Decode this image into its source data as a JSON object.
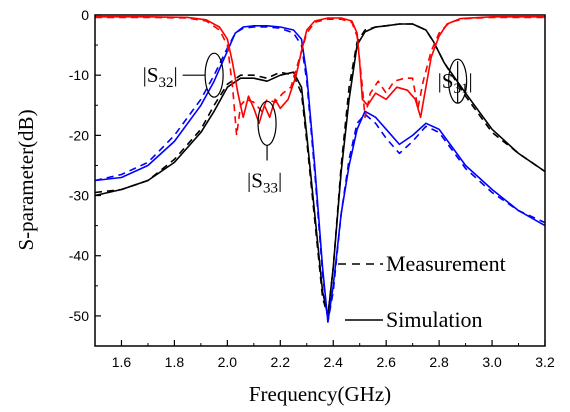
{
  "chart_data": {
    "type": "line",
    "title": "",
    "xlabel": "Frequency(GHz)",
    "ylabel": "S-parameter(dB)",
    "xlim": [
      1.5,
      3.2
    ],
    "ylim": [
      -55,
      0
    ],
    "xticks": [
      "1.6",
      "1.8",
      "2.0",
      "2.2",
      "2.4",
      "2.6",
      "2.8",
      "3.0",
      "3.2"
    ],
    "yticks": [
      "0",
      "-10",
      "-20",
      "-30",
      "-40",
      "-50"
    ],
    "grid": false,
    "legend": {
      "position": "bottom-right",
      "entries": [
        {
          "label": "Measurement",
          "style": "dashed"
        },
        {
          "label": "Simulation",
          "style": "solid"
        }
      ]
    },
    "annotations": [
      {
        "label": "|S32|",
        "text_main": "S",
        "text_sub": "32",
        "at": [
          1.95,
          -10
        ],
        "text_at": [
          1.68,
          -11.5
        ]
      },
      {
        "label": "|S33|",
        "text_main": "S",
        "text_sub": "33",
        "at": [
          2.15,
          -18
        ],
        "text_at": [
          2.15,
          -27.5
        ]
      },
      {
        "label": "|S31|",
        "text_main": "S",
        "text_sub": "31",
        "at": [
          2.87,
          -11
        ],
        "text_at": [
          2.99,
          -11
        ]
      }
    ],
    "series": [
      {
        "color": "#000000",
        "style": "solid",
        "points": [
          [
            1.5,
            -30
          ],
          [
            1.6,
            -29
          ],
          [
            1.7,
            -27.5
          ],
          [
            1.8,
            -24.5
          ],
          [
            1.9,
            -19.5
          ],
          [
            1.95,
            -16
          ],
          [
            2.0,
            -12
          ],
          [
            2.05,
            -10.5
          ],
          [
            2.1,
            -10.5
          ],
          [
            2.15,
            -11
          ],
          [
            2.2,
            -10
          ],
          [
            2.25,
            -9.5
          ],
          [
            2.28,
            -12
          ],
          [
            2.3,
            -20
          ],
          [
            2.33,
            -33
          ],
          [
            2.36,
            -46
          ],
          [
            2.38,
            -50
          ],
          [
            2.4,
            -42
          ],
          [
            2.43,
            -26
          ],
          [
            2.46,
            -14
          ],
          [
            2.49,
            -5
          ],
          [
            2.52,
            -2.8
          ],
          [
            2.56,
            -2
          ],
          [
            2.6,
            -1.8
          ],
          [
            2.65,
            -1.5
          ],
          [
            2.7,
            -1.5
          ],
          [
            2.75,
            -2.5
          ],
          [
            2.78,
            -4.5
          ],
          [
            2.82,
            -8
          ],
          [
            2.9,
            -13
          ],
          [
            3.0,
            -19
          ],
          [
            3.1,
            -23
          ],
          [
            3.2,
            -26
          ]
        ]
      },
      {
        "color": "#000000",
        "style": "dashed",
        "points": [
          [
            1.5,
            -29.5
          ],
          [
            1.6,
            -29
          ],
          [
            1.7,
            -27.5
          ],
          [
            1.8,
            -24
          ],
          [
            1.9,
            -19
          ],
          [
            1.95,
            -15
          ],
          [
            2.0,
            -11.5
          ],
          [
            2.05,
            -10
          ],
          [
            2.1,
            -10
          ],
          [
            2.15,
            -10.5
          ],
          [
            2.2,
            -9.5
          ],
          [
            2.25,
            -10
          ],
          [
            2.28,
            -13
          ],
          [
            2.3,
            -21
          ],
          [
            2.33,
            -34
          ],
          [
            2.36,
            -47
          ],
          [
            2.38,
            -50
          ],
          [
            2.4,
            -42
          ],
          [
            2.43,
            -25
          ],
          [
            2.46,
            -12
          ],
          [
            2.49,
            -4.5
          ],
          [
            2.52,
            -2.5
          ],
          [
            2.56,
            -2
          ],
          [
            2.6,
            -1.8
          ],
          [
            2.65,
            -1.5
          ],
          [
            2.7,
            -1.5
          ],
          [
            2.75,
            -2.5
          ],
          [
            2.78,
            -4.5
          ],
          [
            2.82,
            -8
          ],
          [
            2.9,
            -13.5
          ],
          [
            3.0,
            -19.5
          ],
          [
            3.1,
            -23
          ],
          [
            3.2,
            -26
          ]
        ]
      },
      {
        "color": "#0000ff",
        "style": "solid",
        "points": [
          [
            1.5,
            -27.5
          ],
          [
            1.6,
            -27
          ],
          [
            1.7,
            -25
          ],
          [
            1.8,
            -21
          ],
          [
            1.9,
            -15
          ],
          [
            1.95,
            -11
          ],
          [
            2.0,
            -6
          ],
          [
            2.03,
            -3
          ],
          [
            2.06,
            -2
          ],
          [
            2.1,
            -1.8
          ],
          [
            2.15,
            -1.8
          ],
          [
            2.2,
            -2
          ],
          [
            2.25,
            -2.5
          ],
          [
            2.28,
            -4
          ],
          [
            2.3,
            -10
          ],
          [
            2.33,
            -25
          ],
          [
            2.36,
            -42
          ],
          [
            2.38,
            -51
          ],
          [
            2.4,
            -45
          ],
          [
            2.43,
            -33
          ],
          [
            2.46,
            -25
          ],
          [
            2.49,
            -19
          ],
          [
            2.52,
            -16
          ],
          [
            2.56,
            -17
          ],
          [
            2.6,
            -19
          ],
          [
            2.65,
            -21.5
          ],
          [
            2.7,
            -20
          ],
          [
            2.75,
            -18
          ],
          [
            2.8,
            -19
          ],
          [
            2.85,
            -22
          ],
          [
            2.9,
            -25
          ],
          [
            3.0,
            -29
          ],
          [
            3.1,
            -32.5
          ],
          [
            3.2,
            -35
          ]
        ]
      },
      {
        "color": "#0000ff",
        "style": "dashed",
        "points": [
          [
            1.5,
            -27.5
          ],
          [
            1.6,
            -26.5
          ],
          [
            1.7,
            -24.5
          ],
          [
            1.8,
            -20
          ],
          [
            1.9,
            -14
          ],
          [
            1.95,
            -10
          ],
          [
            2.0,
            -5.5
          ],
          [
            2.03,
            -3
          ],
          [
            2.06,
            -2.2
          ],
          [
            2.1,
            -2
          ],
          [
            2.15,
            -2
          ],
          [
            2.2,
            -2.2
          ],
          [
            2.25,
            -3
          ],
          [
            2.28,
            -5
          ],
          [
            2.3,
            -11
          ],
          [
            2.33,
            -26
          ],
          [
            2.36,
            -43
          ],
          [
            2.38,
            -51
          ],
          [
            2.4,
            -46
          ],
          [
            2.43,
            -33
          ],
          [
            2.46,
            -24
          ],
          [
            2.49,
            -18
          ],
          [
            2.52,
            -16.5
          ],
          [
            2.56,
            -18
          ],
          [
            2.6,
            -20.5
          ],
          [
            2.65,
            -23
          ],
          [
            2.7,
            -21
          ],
          [
            2.75,
            -18.5
          ],
          [
            2.8,
            -19.5
          ],
          [
            2.85,
            -22.5
          ],
          [
            2.9,
            -25.5
          ],
          [
            3.0,
            -29.5
          ],
          [
            3.1,
            -32.5
          ],
          [
            3.2,
            -34.5
          ]
        ]
      },
      {
        "color": "#ff0000",
        "style": "solid",
        "points": [
          [
            1.5,
            -0.3
          ],
          [
            1.7,
            -0.3
          ],
          [
            1.85,
            -0.4
          ],
          [
            1.92,
            -0.8
          ],
          [
            1.97,
            -2
          ],
          [
            2.0,
            -4
          ],
          [
            2.02,
            -8
          ],
          [
            2.04,
            -13
          ],
          [
            2.06,
            -17
          ],
          [
            2.08,
            -13.5
          ],
          [
            2.1,
            -15.5
          ],
          [
            2.12,
            -18
          ],
          [
            2.14,
            -15
          ],
          [
            2.16,
            -17
          ],
          [
            2.18,
            -14
          ],
          [
            2.2,
            -15.5
          ],
          [
            2.23,
            -14
          ],
          [
            2.26,
            -10
          ],
          [
            2.28,
            -6
          ],
          [
            2.3,
            -2.5
          ],
          [
            2.33,
            -1
          ],
          [
            2.38,
            -0.5
          ],
          [
            2.43,
            -0.5
          ],
          [
            2.47,
            -1
          ],
          [
            2.49,
            -3
          ],
          [
            2.5,
            -8
          ],
          [
            2.51,
            -14
          ],
          [
            2.53,
            -15
          ],
          [
            2.56,
            -13
          ],
          [
            2.6,
            -14
          ],
          [
            2.64,
            -12
          ],
          [
            2.68,
            -12.5
          ],
          [
            2.71,
            -14
          ],
          [
            2.73,
            -17
          ],
          [
            2.75,
            -12
          ],
          [
            2.77,
            -7
          ],
          [
            2.8,
            -3.5
          ],
          [
            2.83,
            -1.5
          ],
          [
            2.88,
            -0.6
          ],
          [
            3.0,
            -0.3
          ],
          [
            3.2,
            -0.3
          ]
        ]
      },
      {
        "color": "#ff0000",
        "style": "dashed",
        "points": [
          [
            1.5,
            -0.4
          ],
          [
            1.7,
            -0.4
          ],
          [
            1.85,
            -0.5
          ],
          [
            1.92,
            -1
          ],
          [
            1.97,
            -2.5
          ],
          [
            2.0,
            -5
          ],
          [
            2.02,
            -12
          ],
          [
            2.035,
            -20
          ],
          [
            2.05,
            -15
          ],
          [
            2.07,
            -14
          ],
          [
            2.1,
            -14.5
          ],
          [
            2.13,
            -16
          ],
          [
            2.15,
            -14
          ],
          [
            2.18,
            -14.5
          ],
          [
            2.21,
            -13
          ],
          [
            2.24,
            -12
          ],
          [
            2.26,
            -9
          ],
          [
            2.28,
            -6
          ],
          [
            2.3,
            -3
          ],
          [
            2.33,
            -1.2
          ],
          [
            2.38,
            -0.7
          ],
          [
            2.43,
            -0.7
          ],
          [
            2.47,
            -1.2
          ],
          [
            2.49,
            -3.5
          ],
          [
            2.51,
            -12
          ],
          [
            2.52,
            -17
          ],
          [
            2.54,
            -13
          ],
          [
            2.57,
            -11
          ],
          [
            2.6,
            -13
          ],
          [
            2.63,
            -11
          ],
          [
            2.67,
            -10.5
          ],
          [
            2.7,
            -10.5
          ],
          [
            2.72,
            -15.5
          ],
          [
            2.74,
            -11
          ],
          [
            2.77,
            -6
          ],
          [
            2.8,
            -3
          ],
          [
            2.84,
            -1.2
          ],
          [
            2.9,
            -0.6
          ],
          [
            3.0,
            -0.4
          ],
          [
            3.2,
            -0.4
          ]
        ]
      }
    ]
  }
}
